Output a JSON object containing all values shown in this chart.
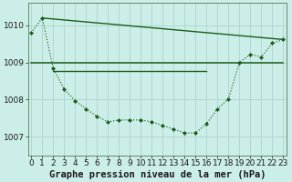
{
  "background_color": "#cceee8",
  "grid_color": "#aad4cc",
  "line_color": "#1a5c1a",
  "title": "Graphe pression niveau de la mer (hPa)",
  "title_fontsize": 7.5,
  "tick_fontsize": 6.5,
  "ylim": [
    1006.5,
    1010.6
  ],
  "xlim": [
    -0.3,
    23.3
  ],
  "yticks": [
    1007,
    1008,
    1009,
    1010
  ],
  "xticks": [
    0,
    1,
    2,
    3,
    4,
    5,
    6,
    7,
    8,
    9,
    10,
    11,
    12,
    13,
    14,
    15,
    16,
    17,
    18,
    19,
    20,
    21,
    22,
    23
  ],
  "series": [
    {
      "x": [
        0,
        1,
        2,
        3,
        4,
        5,
        6,
        7,
        8,
        9,
        10,
        11,
        12,
        13,
        14,
        15,
        16,
        17,
        18,
        19,
        20,
        21,
        22,
        23
      ],
      "y": [
        1009.8,
        1010.2,
        1008.85,
        1008.28,
        1007.97,
        1007.75,
        1007.55,
        1007.4,
        1007.45,
        1007.45,
        1007.45,
        1007.4,
        1007.3,
        1007.2,
        1007.1,
        1007.1,
        1007.35,
        1007.75,
        1008.02,
        1009.0,
        1009.22,
        1009.15,
        1009.52,
        1009.62
      ],
      "marker": "D",
      "markersize": 2.2,
      "linewidth": 0.85,
      "linestyle": ":"
    },
    {
      "x": [
        0,
        23
      ],
      "y": [
        1008.98,
        1008.98
      ],
      "marker": null,
      "markersize": 0,
      "linewidth": 1.1,
      "linestyle": "-"
    },
    {
      "x": [
        2,
        16
      ],
      "y": [
        1008.78,
        1008.78
      ],
      "marker": null,
      "markersize": 0,
      "linewidth": 1.0,
      "linestyle": "-"
    },
    {
      "x": [
        1,
        23
      ],
      "y": [
        1010.2,
        1009.62
      ],
      "marker": null,
      "markersize": 0,
      "linewidth": 1.0,
      "linestyle": "-"
    }
  ]
}
